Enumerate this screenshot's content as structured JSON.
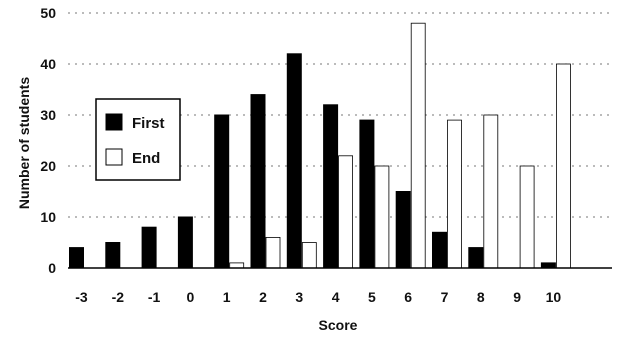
{
  "chart_data": {
    "type": "bar",
    "title": "",
    "xlabel": "Score",
    "ylabel": "Number of students",
    "categories": [
      "-3",
      "-2",
      "-1",
      "0",
      "1",
      "2",
      "3",
      "4",
      "5",
      "6",
      "7",
      "8",
      "9",
      "10"
    ],
    "series": [
      {
        "name": "First",
        "color": "#000000",
        "fill": "solid",
        "values": [
          4,
          5,
          8,
          10,
          30,
          34,
          42,
          32,
          29,
          15,
          7,
          4,
          0,
          1
        ]
      },
      {
        "name": "End",
        "color": "#ffffff",
        "fill": "outline",
        "values": [
          0,
          0,
          0,
          0,
          1,
          6,
          5,
          22,
          20,
          48,
          29,
          30,
          20,
          40
        ]
      }
    ],
    "ylim": [
      0,
      50
    ],
    "yticks": [
      0,
      10,
      20,
      30,
      40,
      50
    ],
    "grid": "horizontal-dashed",
    "legend_position": "left"
  }
}
